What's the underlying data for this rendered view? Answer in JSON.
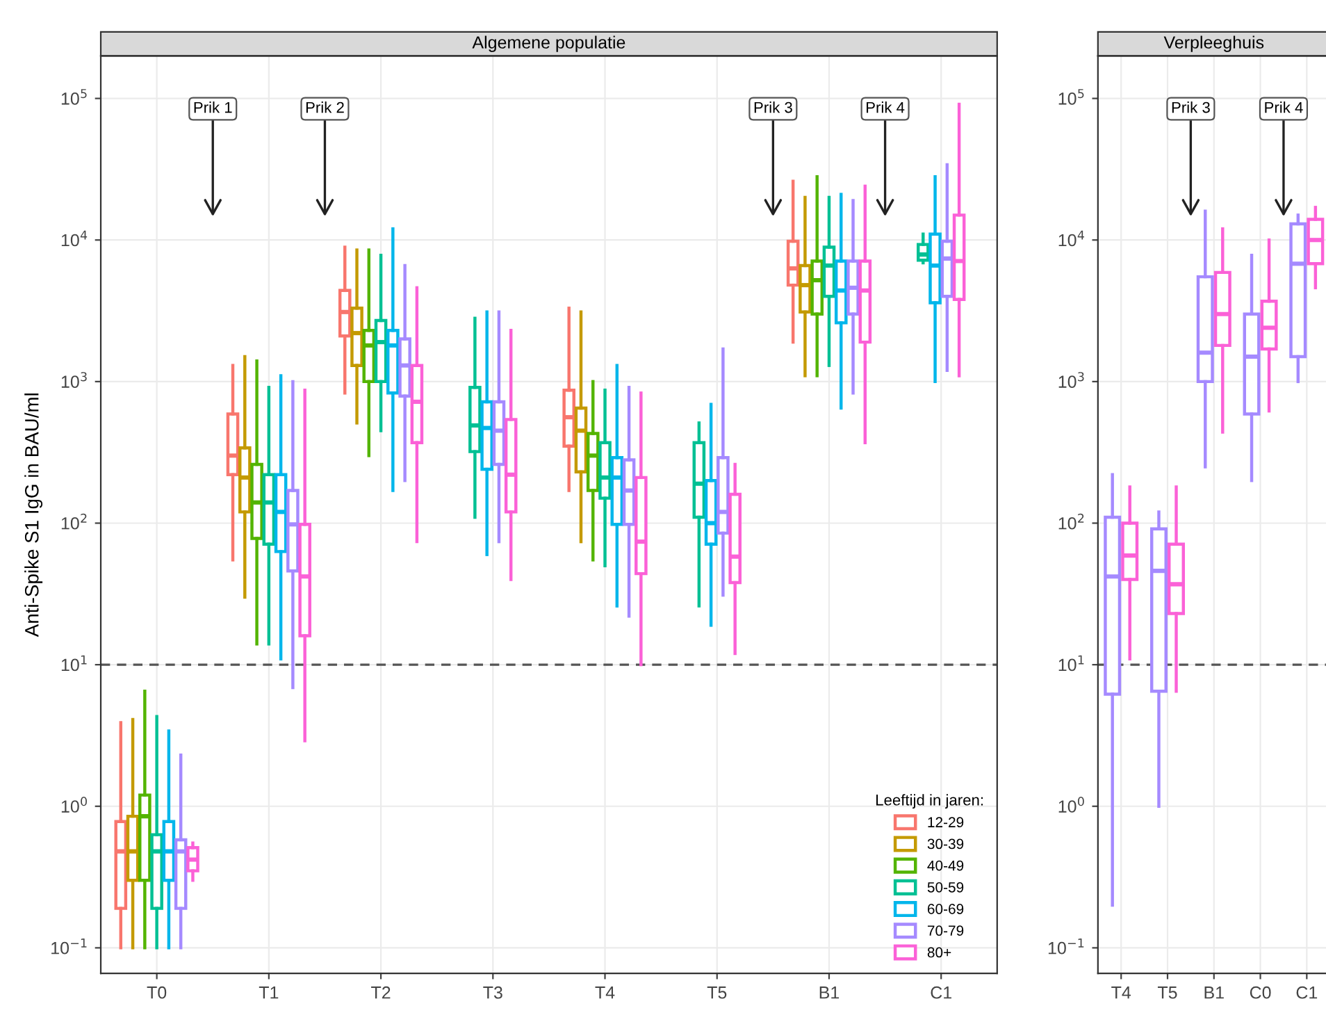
{
  "chart_data": [
    {
      "type": "box",
      "title": "Algemene populatie",
      "ylabel": "Anti-Spike S1 IgG in BAU/ml",
      "legend_title": "Leeftijd in jaren:",
      "legend": "bottom right",
      "log": "y",
      "grid": true,
      "categories": [
        "T0",
        "T1",
        "T2",
        "T3",
        "T4",
        "T5",
        "B1",
        "C1"
      ],
      "ylim": [
        0.066,
        200000
      ],
      "yticks": [
        {
          "value": 0.1,
          "label": "10$^{−1}$"
        },
        {
          "value": 1,
          "label": "10$^{0}$"
        },
        {
          "value": 10,
          "label": "10$^{1}$"
        },
        {
          "value": 100,
          "label": "10$^{2}$"
        },
        {
          "value": 1000,
          "label": "10$^{3}$"
        },
        {
          "value": 10000,
          "label": "10$^{4}$"
        },
        {
          "value": 100000,
          "label": "10$^{5}$"
        }
      ],
      "ref_lines": [
        {
          "axis": "y",
          "value": 10,
          "color": "#555555",
          "line_style": "dashed"
        }
      ],
      "annotations": [
        "Prik 1",
        "Prik 2",
        "Prik 3",
        "Prik 4"
      ],
      "series": [
        {
          "name": "12-29",
          "color": "#f8766d",
          "boxes": [
            {
              "low": 0.1,
              "q1": 0.19,
              "median": 0.48,
              "q3": 0.78,
              "high": 3.9
            },
            {
              "low": 55,
              "q1": 220,
              "median": 300,
              "q3": 590,
              "high": 1300
            },
            {
              "low": 830,
              "q1": 2100,
              "median": 3100,
              "q3": 4400,
              "high": 8900
            },
            null,
            {
              "low": 170,
              "q1": 350,
              "median": 560,
              "q3": 870,
              "high": 3300
            },
            null,
            {
              "low": 1900,
              "q1": 4800,
              "median": 6300,
              "q3": 9800,
              "high": 26000
            },
            null
          ]
        },
        {
          "name": "30-39",
          "color": "#c49a00",
          "boxes": [
            {
              "low": 0.1,
              "q1": 0.3,
              "median": 0.48,
              "q3": 0.85,
              "high": 4.1
            },
            {
              "low": 30,
              "q1": 120,
              "median": 210,
              "q3": 340,
              "high": 1500
            },
            {
              "low": 510,
              "q1": 1300,
              "median": 2200,
              "q3": 3300,
              "high": 8500
            },
            null,
            {
              "low": 74,
              "q1": 230,
              "median": 450,
              "q3": 650,
              "high": 3100
            },
            null,
            {
              "low": 1100,
              "q1": 3100,
              "median": 4800,
              "q3": 6600,
              "high": 20000
            },
            null
          ]
        },
        {
          "name": "40-49",
          "color": "#53b400",
          "boxes": [
            {
              "low": 0.1,
              "q1": 0.3,
              "median": 0.85,
              "q3": 1.2,
              "high": 6.5
            },
            {
              "low": 14,
              "q1": 78,
              "median": 140,
              "q3": 260,
              "high": 1400
            },
            {
              "low": 300,
              "q1": 1000,
              "median": 1800,
              "q3": 2300,
              "high": 8500
            },
            null,
            {
              "low": 55,
              "q1": 170,
              "median": 300,
              "q3": 430,
              "high": 1000
            },
            null,
            {
              "low": 1100,
              "q1": 3000,
              "median": 5200,
              "q3": 7100,
              "high": 28000
            },
            null
          ]
        },
        {
          "name": "50-59",
          "color": "#00c094",
          "boxes": [
            {
              "low": 0.1,
              "q1": 0.19,
              "median": 0.48,
              "q3": 0.63,
              "high": 4.3
            },
            {
              "low": 14,
              "q1": 71,
              "median": 140,
              "q3": 220,
              "high": 910
            },
            {
              "low": 450,
              "q1": 1000,
              "median": 1900,
              "q3": 2700,
              "high": 7800
            },
            {
              "low": 110,
              "q1": 320,
              "median": 490,
              "q3": 910,
              "high": 2800
            },
            {
              "low": 50,
              "q1": 150,
              "median": 210,
              "q3": 370,
              "high": 870
            },
            {
              "low": 26,
              "q1": 110,
              "median": 190,
              "q3": 370,
              "high": 510
            },
            {
              "low": 1300,
              "q1": 4000,
              "median": 6600,
              "q3": 8900,
              "high": 20000
            },
            {
              "low": 6900,
              "q1": 7200,
              "median": 7900,
              "q3": 9300,
              "high": 11000
            }
          ]
        },
        {
          "name": "60-69",
          "color": "#00b6eb",
          "boxes": [
            {
              "low": 0.1,
              "q1": 0.3,
              "median": 0.48,
              "q3": 0.78,
              "high": 3.4
            },
            {
              "low": 11,
              "q1": 63,
              "median": 120,
              "q3": 220,
              "high": 1100
            },
            {
              "low": 170,
              "q1": 830,
              "median": 1800,
              "q3": 2300,
              "high": 12000
            },
            {
              "low": 60,
              "q1": 240,
              "median": 470,
              "q3": 720,
              "high": 3100
            },
            {
              "low": 26,
              "q1": 98,
              "median": 210,
              "q3": 290,
              "high": 1300
            },
            {
              "low": 19,
              "q1": 71,
              "median": 100,
              "q3": 200,
              "high": 690
            },
            {
              "low": 650,
              "q1": 2600,
              "median": 4400,
              "q3": 7100,
              "high": 21000
            },
            {
              "low": 1000,
              "q1": 3600,
              "median": 6600,
              "q3": 11000,
              "high": 28000
            }
          ]
        },
        {
          "name": "70-79",
          "color": "#a58aff",
          "boxes": [
            {
              "low": 0.1,
              "q1": 0.19,
              "median": 0.48,
              "q3": 0.58,
              "high": 2.3
            },
            {
              "low": 6.9,
              "q1": 46,
              "median": 98,
              "q3": 170,
              "high": 1000
            },
            {
              "low": 200,
              "q1": 790,
              "median": 1300,
              "q3": 2000,
              "high": 6600
            },
            {
              "low": 74,
              "q1": 260,
              "median": 450,
              "q3": 720,
              "high": 3100
            },
            {
              "low": 22,
              "q1": 98,
              "median": 170,
              "q3": 280,
              "high": 910
            },
            {
              "low": 31,
              "q1": 85,
              "median": 120,
              "q3": 290,
              "high": 1700
            },
            {
              "low": 830,
              "q1": 3000,
              "median": 4600,
              "q3": 7100,
              "high": 19000
            },
            {
              "low": 1200,
              "q1": 4000,
              "median": 7400,
              "q3": 9800,
              "high": 34000
            }
          ]
        },
        {
          "name": "80+",
          "color": "#fb61d7",
          "boxes": [
            {
              "low": 0.3,
              "q1": 0.35,
              "median": 0.42,
              "q3": 0.51,
              "high": 0.55
            },
            {
              "low": 2.9,
              "q1": 16,
              "median": 42,
              "q3": 98,
              "high": 870
            },
            {
              "low": 74,
              "q1": 370,
              "median": 720,
              "q3": 1300,
              "high": 4600
            },
            {
              "low": 40,
              "q1": 120,
              "median": 220,
              "q3": 540,
              "high": 2300
            },
            {
              "low": 10,
              "q1": 44,
              "median": 74,
              "q3": 210,
              "high": 830
            },
            {
              "low": 12,
              "q1": 38,
              "median": 58,
              "q3": 160,
              "high": 260
            },
            {
              "low": 370,
              "q1": 1900,
              "median": 4400,
              "q3": 7100,
              "high": 24000
            },
            {
              "low": 1100,
              "q1": 3800,
              "median": 7100,
              "q3": 15000,
              "high": 91000
            }
          ]
        }
      ]
    },
    {
      "type": "box",
      "title": "Verpleeghuis",
      "log": "y",
      "grid": true,
      "categories": [
        "T4",
        "T5",
        "B1",
        "C0",
        "C1"
      ],
      "ylim": [
        0.066,
        200000
      ],
      "yticks": [
        {
          "value": 0.1,
          "label": "10$^{−1}$"
        },
        {
          "value": 1,
          "label": "10$^{0}$"
        },
        {
          "value": 10,
          "label": "10$^{1}$"
        },
        {
          "value": 100,
          "label": "10$^{2}$"
        },
        {
          "value": 1000,
          "label": "10$^{3}$"
        },
        {
          "value": 10000,
          "label": "10$^{4}$"
        },
        {
          "value": 100000,
          "label": "10$^{5}$"
        }
      ],
      "ref_lines": [
        {
          "axis": "y",
          "value": 10,
          "color": "#555555",
          "line_style": "dashed"
        }
      ],
      "annotations": [
        "Prik 3",
        "Prik 4"
      ],
      "series": [
        {
          "color": "#a58aff",
          "boxes": [
            {
              "low": 0.2,
              "q1": 6.2,
              "median": 42,
              "q3": 110,
              "high": 220
            },
            {
              "low": 1.0,
              "q1": 6.5,
              "median": 46,
              "q3": 91,
              "high": 120
            },
            {
              "low": 250,
              "q1": 1000,
              "median": 1600,
              "q3": 5500,
              "high": 16000
            },
            {
              "low": 200,
              "q1": 590,
              "median": 1500,
              "q3": 3000,
              "high": 7800
            },
            {
              "low": 1000,
              "q1": 1500,
              "median": 6800,
              "q3": 13000,
              "high": 15000
            }
          ]
        },
        {
          "color": "#fb61d7",
          "boxes": [
            {
              "low": 11,
              "q1": 40,
              "median": 59,
              "q3": 100,
              "high": 180
            },
            {
              "low": 6.5,
              "q1": 23,
              "median": 37,
              "q3": 71,
              "high": 180
            },
            {
              "low": 440,
              "q1": 1800,
              "median": 3000,
              "q3": 5900,
              "high": 12000
            },
            {
              "low": 620,
              "q1": 1700,
              "median": 2400,
              "q3": 3700,
              "high": 10000
            },
            {
              "low": 4600,
              "q1": 6800,
              "median": 10000,
              "q3": 14000,
              "high": 17000
            }
          ]
        }
      ]
    }
  ]
}
